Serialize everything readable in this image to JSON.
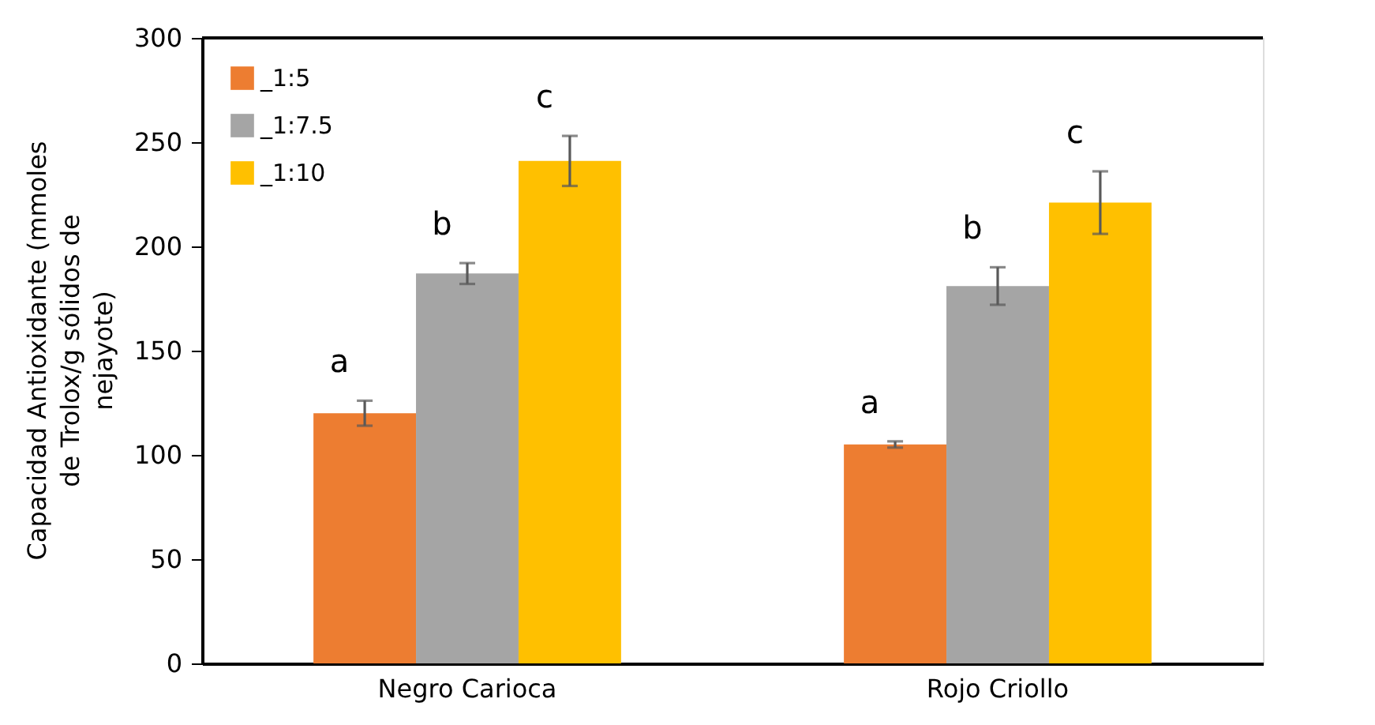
{
  "chart_data": {
    "type": "bar",
    "ylabel": "Capacidad Antioxidante (mmoles de Trolox/g sólidos de nejayote)",
    "categories": [
      "Negro Carioca",
      "Rojo Criollo"
    ],
    "series": [
      {
        "name": "_1:5",
        "color": "#ed7d31",
        "values": [
          120,
          105
        ],
        "errors": [
          6,
          1.5
        ]
      },
      {
        "name": "_1:7.5",
        "color": "#a5a5a5",
        "values": [
          187,
          181
        ],
        "errors": [
          5,
          9
        ]
      },
      {
        "name": "_1:10",
        "color": "#ffc000",
        "values": [
          241,
          221
        ],
        "errors": [
          12,
          15
        ]
      }
    ],
    "annotations": [
      "a",
      "b",
      "c",
      "a",
      "b",
      "c"
    ],
    "ylim": [
      0,
      300
    ],
    "yticks": [
      0,
      50,
      100,
      150,
      200,
      250,
      300
    ],
    "grid": false,
    "legend": "top left"
  }
}
